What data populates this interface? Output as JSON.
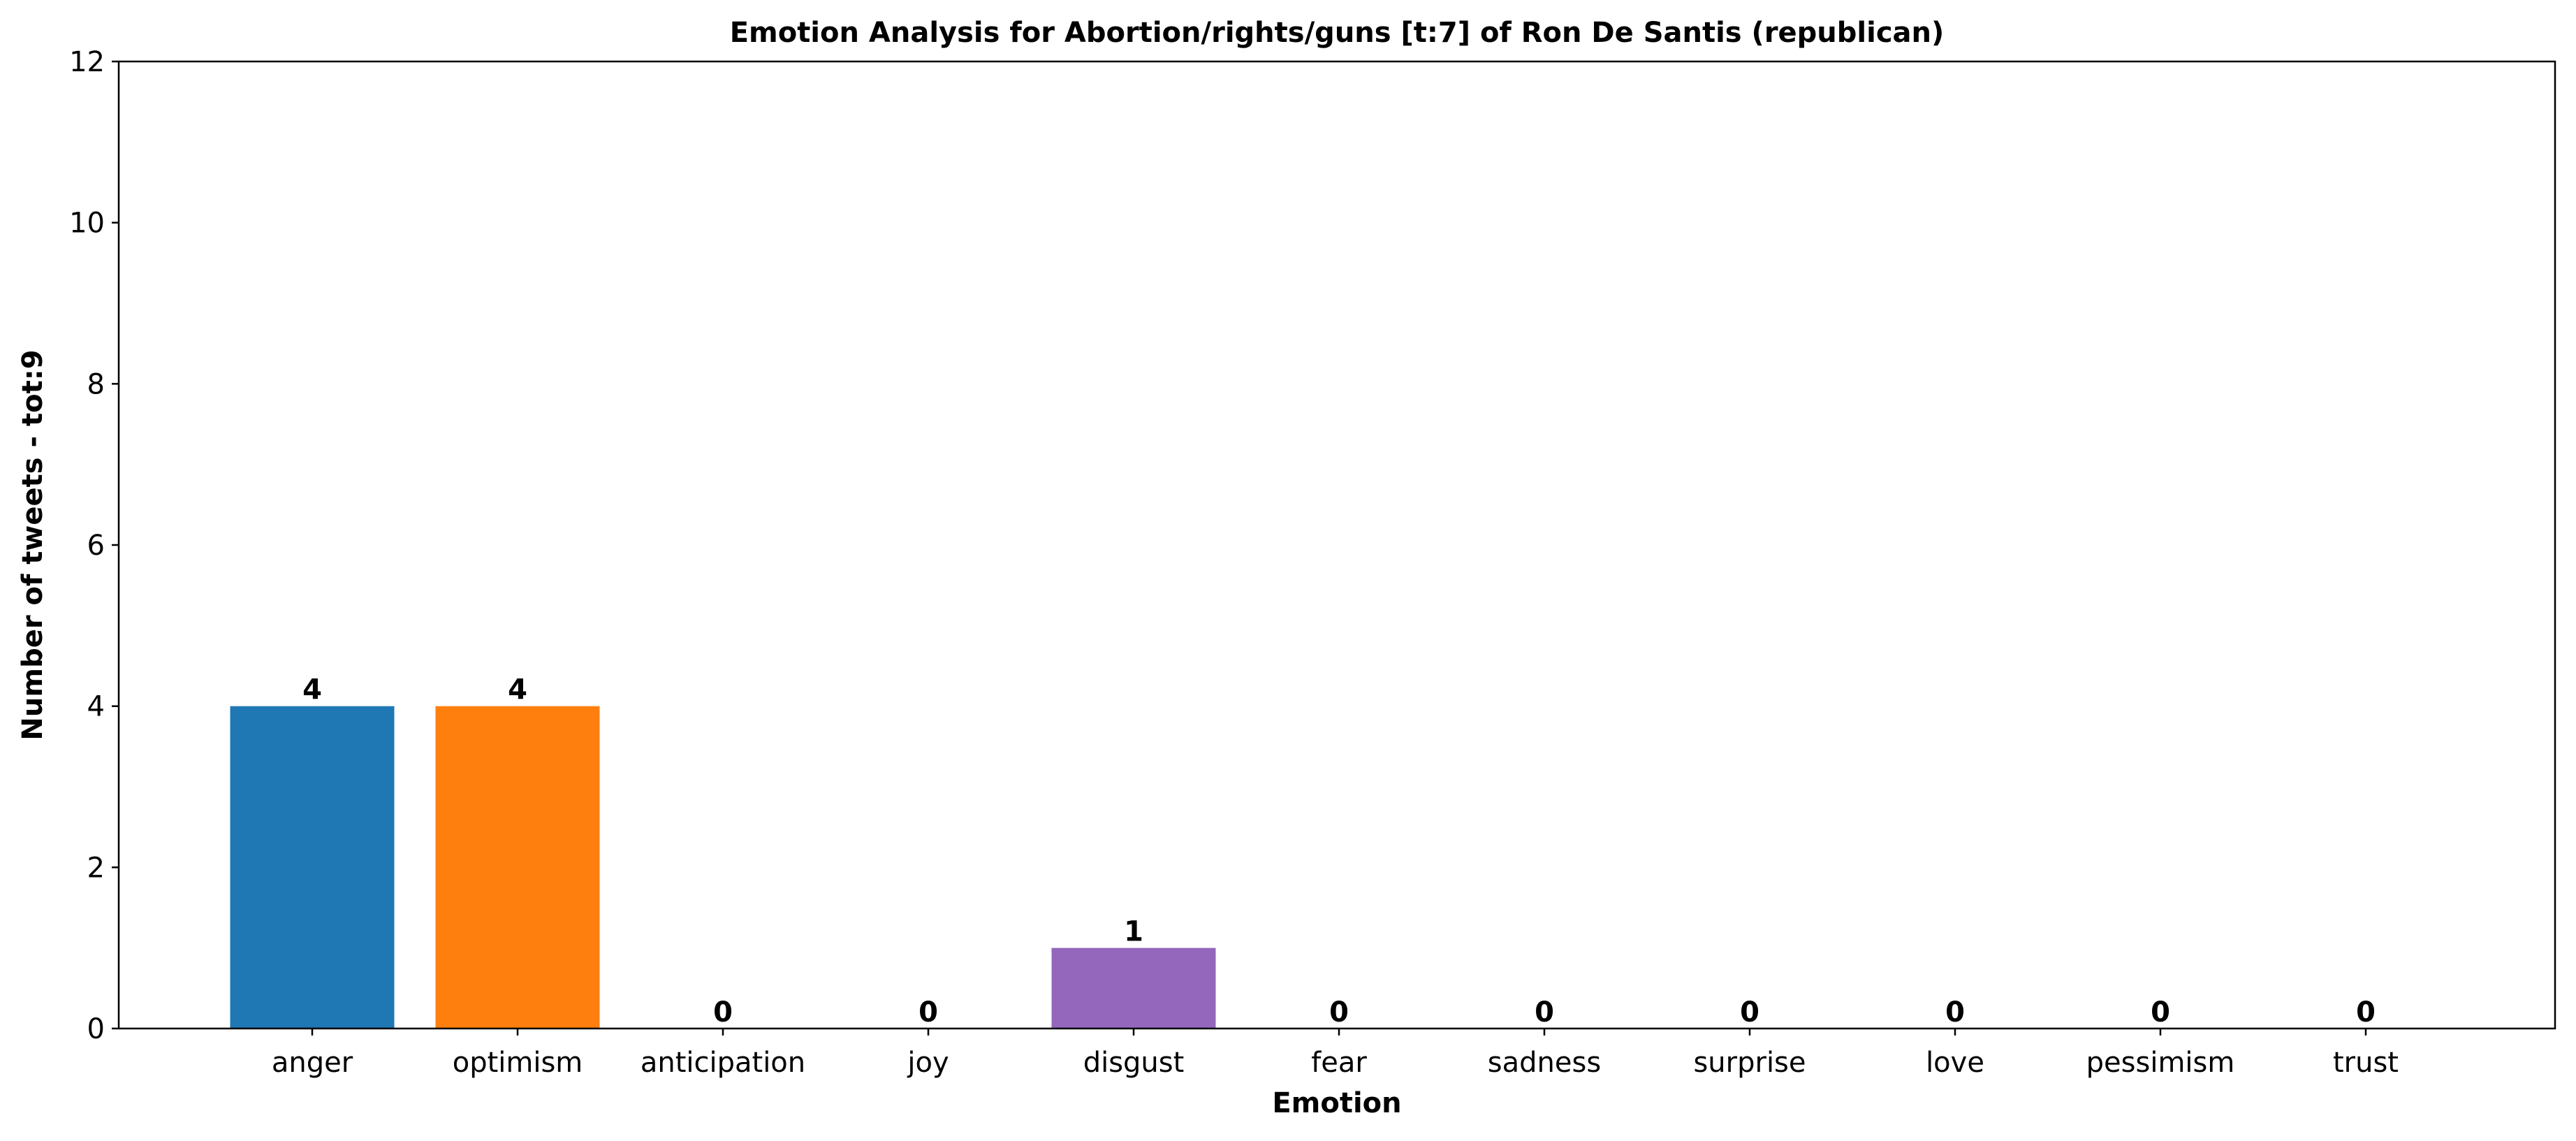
{
  "chart_data": {
    "type": "bar",
    "title": "Emotion Analysis for Abortion/rights/guns [t:7] of Ron De Santis (republican)",
    "xlabel": "Emotion",
    "ylabel": "Number of tweets - tot:9",
    "categories": [
      "anger",
      "optimism",
      "anticipation",
      "joy",
      "disgust",
      "fear",
      "sadness",
      "surprise",
      "love",
      "pessimism",
      "trust"
    ],
    "values": [
      4,
      4,
      0,
      0,
      1,
      0,
      0,
      0,
      0,
      0,
      0
    ],
    "colors": [
      "#1f77b4",
      "#ff7f0e",
      "#2ca02c",
      "#d62728",
      "#9467bd",
      "#8c564b",
      "#e377c2",
      "#7f7f7f",
      "#bcbd22",
      "#17becf",
      "#1f77b4"
    ],
    "ylim": [
      0,
      12
    ],
    "yticks": [
      0,
      2,
      4,
      6,
      8,
      10,
      12
    ],
    "grid": false,
    "legend": "none"
  }
}
